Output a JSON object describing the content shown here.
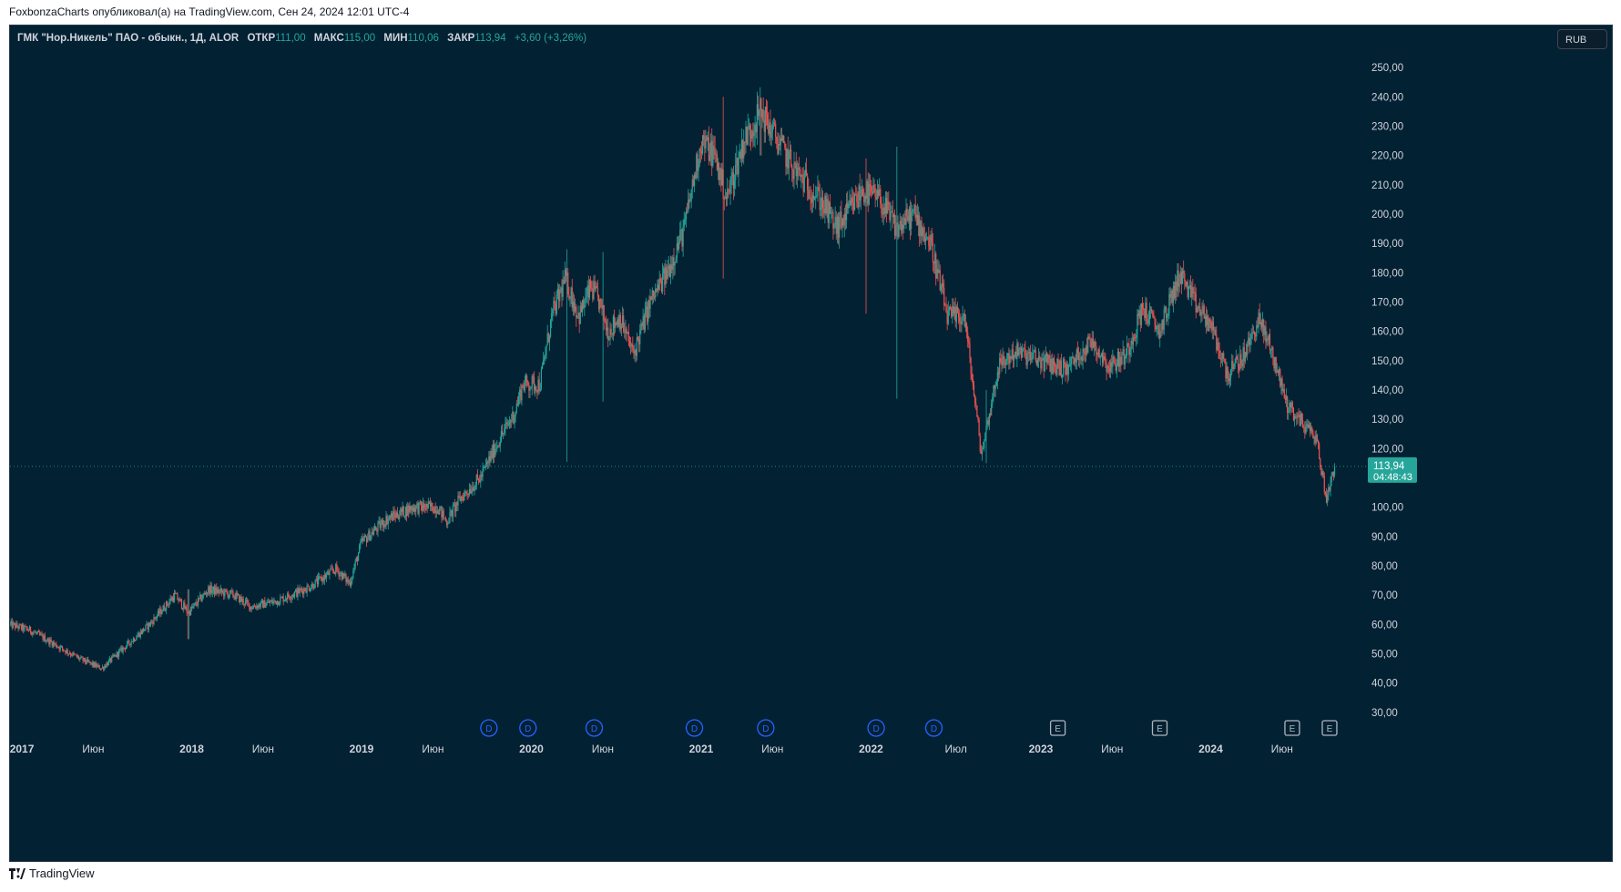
{
  "header": {
    "published_text": "FoxbonzaCharts опубликовал(а) на TradingView.com, Сен 24, 2024 12:01 UTC-4"
  },
  "legend": {
    "symbol": "ГМК \"Нор.Никель\" ПАО - обыкн., 1Д, ALOR",
    "open_label": "ОТКР",
    "open_value": "111,00",
    "high_label": "МАКС",
    "high_value": "115,00",
    "low_label": "МИН",
    "low_value": "110,06",
    "close_label": "ЗАКР",
    "close_value": "113,94",
    "change": "+3,60 (+3,26%)"
  },
  "currency_button": "RUB",
  "footer": {
    "brand": "TradingView"
  },
  "colors": {
    "background": "#022133",
    "up": "#26a69a",
    "down": "#ef5350",
    "axis_text": "#d1d4dc",
    "price_label_bg": "#26a69a",
    "dividend_marker": "#2962ff",
    "earnings_marker": "#b2b5be"
  },
  "chart_data": {
    "type": "candlestick",
    "currency": "RUB",
    "timeframe": "1Д",
    "ylim": [
      25,
      255
    ],
    "y_ticks": [
      30,
      40,
      50,
      60,
      70,
      80,
      90,
      100,
      110,
      120,
      130,
      140,
      150,
      160,
      170,
      180,
      190,
      200,
      210,
      220,
      230,
      240,
      250
    ],
    "y_tick_labels": [
      "30,00",
      "40,00",
      "50,00",
      "60,00",
      "70,00",
      "80,00",
      "90,00",
      "100,00",
      "110,00",
      "120,00",
      "130,00",
      "140,00",
      "150,00",
      "160,00",
      "170,00",
      "180,00",
      "190,00",
      "200,00",
      "210,00",
      "220,00",
      "230,00",
      "240,00",
      "250,00"
    ],
    "x_ticks": [
      {
        "t": 2017.0,
        "label": "2017",
        "bold": true
      },
      {
        "t": 2017.42,
        "label": "Июн",
        "bold": false
      },
      {
        "t": 2018.0,
        "label": "2018",
        "bold": true
      },
      {
        "t": 2018.42,
        "label": "Июн",
        "bold": false
      },
      {
        "t": 2019.0,
        "label": "2019",
        "bold": true
      },
      {
        "t": 2019.42,
        "label": "Июн",
        "bold": false
      },
      {
        "t": 2020.0,
        "label": "2020",
        "bold": true
      },
      {
        "t": 2020.42,
        "label": "Июн",
        "bold": false
      },
      {
        "t": 2021.0,
        "label": "2021",
        "bold": true
      },
      {
        "t": 2021.42,
        "label": "Июн",
        "bold": false
      },
      {
        "t": 2022.0,
        "label": "2022",
        "bold": true
      },
      {
        "t": 2022.5,
        "label": "Июл",
        "bold": false
      },
      {
        "t": 2023.0,
        "label": "2023",
        "bold": true
      },
      {
        "t": 2023.42,
        "label": "Июн",
        "bold": false
      },
      {
        "t": 2024.0,
        "label": "2024",
        "bold": true
      },
      {
        "t": 2024.42,
        "label": "Июн",
        "bold": false
      }
    ],
    "xlim": [
      2016.93,
      2024.92
    ],
    "price_anchors": [
      [
        2016.93,
        60
      ],
      [
        2017.05,
        58
      ],
      [
        2017.2,
        53
      ],
      [
        2017.35,
        48
      ],
      [
        2017.47,
        45
      ],
      [
        2017.6,
        52
      ],
      [
        2017.75,
        60
      ],
      [
        2017.9,
        70
      ],
      [
        2017.98,
        64
      ],
      [
        2018.1,
        72
      ],
      [
        2018.25,
        70
      ],
      [
        2018.35,
        66
      ],
      [
        2018.5,
        68
      ],
      [
        2018.7,
        73
      ],
      [
        2018.85,
        79
      ],
      [
        2018.93,
        74
      ],
      [
        2019.0,
        88
      ],
      [
        2019.15,
        96
      ],
      [
        2019.3,
        100
      ],
      [
        2019.45,
        100
      ],
      [
        2019.5,
        95
      ],
      [
        2019.58,
        103
      ],
      [
        2019.7,
        110
      ],
      [
        2019.8,
        122
      ],
      [
        2019.9,
        132
      ],
      [
        2019.95,
        142
      ],
      [
        2020.05,
        142
      ],
      [
        2020.12,
        165
      ],
      [
        2020.2,
        178
      ],
      [
        2020.28,
        165
      ],
      [
        2020.35,
        175
      ],
      [
        2020.4,
        170
      ],
      [
        2020.45,
        160
      ],
      [
        2020.52,
        165
      ],
      [
        2020.6,
        152
      ],
      [
        2020.7,
        170
      ],
      [
        2020.8,
        180
      ],
      [
        2020.9,
        195
      ],
      [
        2021.0,
        225
      ],
      [
        2021.08,
        220
      ],
      [
        2021.15,
        205
      ],
      [
        2021.25,
        225
      ],
      [
        2021.35,
        235
      ],
      [
        2021.45,
        225
      ],
      [
        2021.55,
        215
      ],
      [
        2021.7,
        205
      ],
      [
        2021.8,
        195
      ],
      [
        2021.95,
        208
      ],
      [
        2022.05,
        205
      ],
      [
        2022.15,
        195
      ],
      [
        2022.25,
        200
      ],
      [
        2022.35,
        190
      ],
      [
        2022.45,
        165
      ],
      [
        2022.55,
        165
      ],
      [
        2022.65,
        118
      ],
      [
        2022.75,
        148
      ],
      [
        2022.85,
        153
      ],
      [
        2023.0,
        150
      ],
      [
        2023.15,
        147
      ],
      [
        2023.3,
        157
      ],
      [
        2023.4,
        148
      ],
      [
        2023.5,
        152
      ],
      [
        2023.6,
        168
      ],
      [
        2023.7,
        160
      ],
      [
        2023.82,
        180
      ],
      [
        2023.9,
        170
      ],
      [
        2024.0,
        162
      ],
      [
        2024.1,
        145
      ],
      [
        2024.2,
        152
      ],
      [
        2024.28,
        164
      ],
      [
        2024.35,
        155
      ],
      [
        2024.45,
        135
      ],
      [
        2024.55,
        128
      ],
      [
        2024.62,
        124
      ],
      [
        2024.68,
        103
      ],
      [
        2024.73,
        113.94
      ]
    ],
    "candles": {
      "count": 1290,
      "noise_amp": 2.2,
      "wick_amp": 2.0,
      "seed": 12345
    },
    "spikes": [
      {
        "t": 2020.21,
        "low": 115.5,
        "high": 188
      },
      {
        "t": 2020.42,
        "low": 136,
        "high": 187
      },
      {
        "t": 2021.13,
        "low": 178,
        "high": 240
      },
      {
        "t": 2021.35,
        "low": 220,
        "high": 239
      },
      {
        "t": 2021.97,
        "low": 166,
        "high": 219
      },
      {
        "t": 2022.15,
        "low": 137,
        "high": 223
      },
      {
        "t": 2022.68,
        "low": 115,
        "high": 140
      },
      {
        "t": 2017.98,
        "low": 55,
        "high": 72
      }
    ],
    "current_price": 113.94,
    "current_price_label": "113,94",
    "countdown": "04:48:43",
    "events": [
      {
        "t": 2019.75,
        "type": "D"
      },
      {
        "t": 2019.98,
        "type": "D"
      },
      {
        "t": 2020.37,
        "type": "D"
      },
      {
        "t": 2020.96,
        "type": "D"
      },
      {
        "t": 2021.38,
        "type": "D"
      },
      {
        "t": 2022.03,
        "type": "D"
      },
      {
        "t": 2022.37,
        "type": "D"
      },
      {
        "t": 2023.1,
        "type": "E"
      },
      {
        "t": 2023.7,
        "type": "E"
      },
      {
        "t": 2024.48,
        "type": "E"
      },
      {
        "t": 2024.7,
        "type": "E"
      }
    ]
  }
}
